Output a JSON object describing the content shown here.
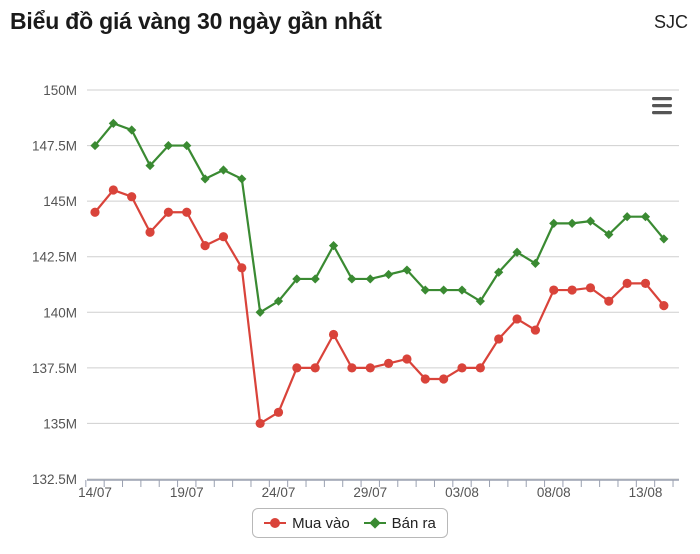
{
  "header": {
    "title": "Biểu đồ giá vàng 30 ngày gần nhất",
    "brand": "SJC"
  },
  "menu": {
    "icon": "hamburger-menu-icon"
  },
  "colors": {
    "buy": "#d9433a",
    "sell": "#3a8a32",
    "grid": "#cfcfcf",
    "axis": "#9aa0b0"
  },
  "chart_data": {
    "type": "line",
    "x": [
      "14/07",
      "15/07",
      "16/07",
      "17/07",
      "18/07",
      "19/07",
      "20/07",
      "21/07",
      "22/07",
      "23/07",
      "24/07",
      "25/07",
      "26/07",
      "27/07",
      "28/07",
      "29/07",
      "30/07",
      "31/07",
      "01/08",
      "02/08",
      "03/08",
      "04/08",
      "05/08",
      "06/08",
      "07/08",
      "08/08",
      "09/08",
      "10/08",
      "11/08",
      "12/08",
      "13/08",
      "14/08"
    ],
    "xticks": [
      "14/07",
      "19/07",
      "24/07",
      "29/07",
      "03/08",
      "08/08",
      "13/08"
    ],
    "yticks": [
      "132.5M",
      "135M",
      "137.5M",
      "140M",
      "142.5M",
      "145M",
      "147.5M",
      "150M"
    ],
    "ylim": [
      132.5,
      150
    ],
    "series": [
      {
        "name": "Mua vào",
        "marker": "circle",
        "values": [
          144.5,
          145.5,
          145.2,
          143.6,
          144.5,
          144.5,
          143.0,
          143.4,
          142.0,
          135.0,
          135.5,
          137.5,
          137.5,
          139.0,
          137.5,
          137.5,
          137.7,
          137.9,
          137.0,
          137.0,
          137.5,
          137.5,
          138.8,
          139.7,
          139.2,
          141.0,
          141.0,
          141.1,
          140.5,
          141.3,
          141.3,
          140.3
        ]
      },
      {
        "name": "Bán ra",
        "marker": "diamond",
        "values": [
          147.5,
          148.5,
          148.2,
          146.6,
          147.5,
          147.5,
          146.0,
          146.4,
          146.0,
          140.0,
          140.5,
          141.5,
          141.5,
          143.0,
          141.5,
          141.5,
          141.7,
          141.9,
          141.0,
          141.0,
          141.0,
          140.5,
          141.8,
          142.7,
          142.2,
          144.0,
          144.0,
          144.1,
          143.5,
          144.3,
          144.3,
          143.3
        ]
      }
    ],
    "legend": "bottom-center",
    "grid": true
  }
}
